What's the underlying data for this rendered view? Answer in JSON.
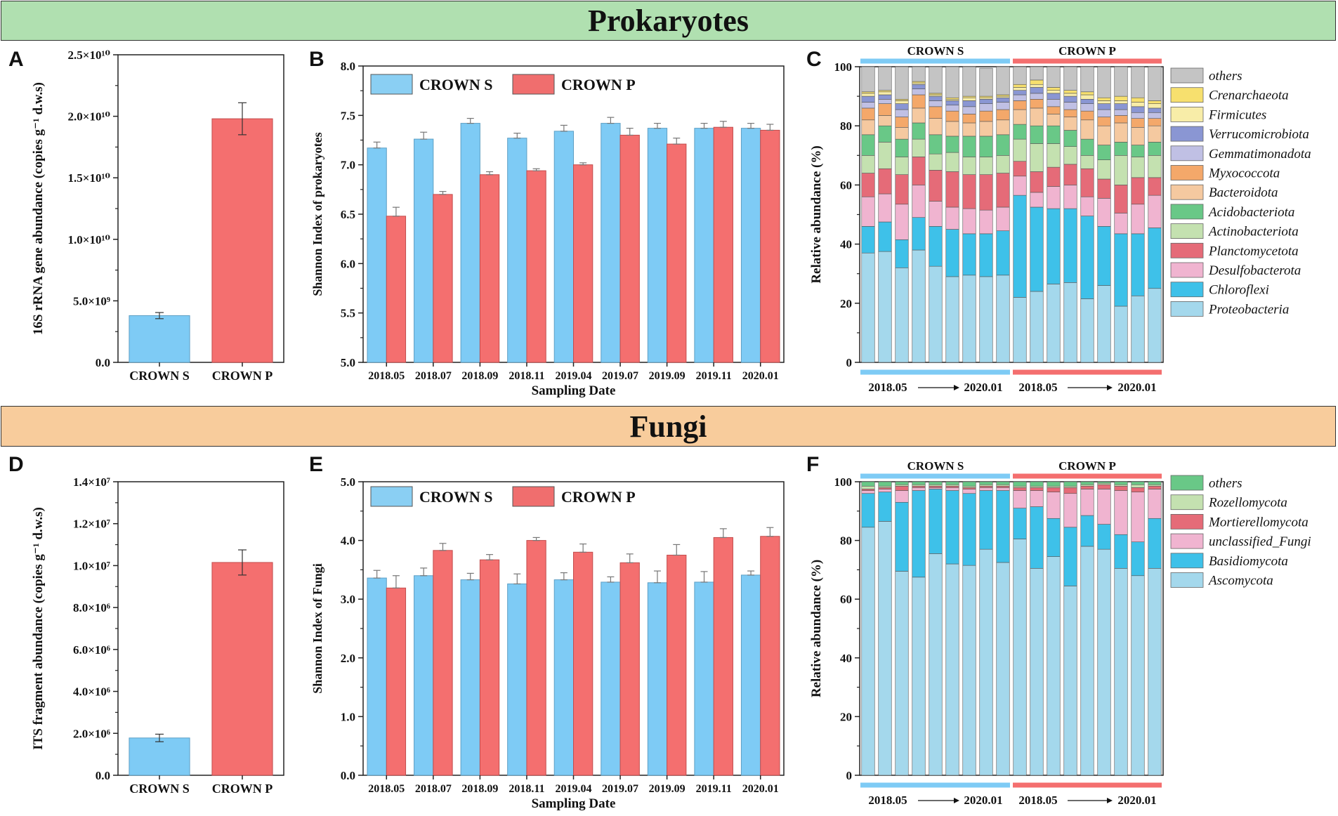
{
  "banners": {
    "prokaryotes": "Prokaryotes",
    "fungi": "Fungi"
  },
  "panel_letters": {
    "a": "A",
    "b": "B",
    "c": "C",
    "d": "D",
    "e": "E",
    "f": "F"
  },
  "colors": {
    "crown_s": "#7ecbf5",
    "crown_p": "#f46f6f",
    "bar_line_s": "#5e9fc4",
    "bar_line_p": "#c24d4d",
    "legend_bar_s": "#8acff3",
    "legend_bar_p": "#f06e6e"
  },
  "chart_data": [
    {
      "id": "A",
      "type": "bar",
      "title": "",
      "categories": [
        "CROWN S",
        "CROWN P"
      ],
      "values": [
        3800000000.0,
        19800000000.0
      ],
      "errors": [
        250000000.0,
        1300000000.0
      ],
      "ylim": [
        0,
        25000000000.0
      ],
      "yticks": [
        "0.0",
        "5.0×10⁹",
        "1.0×10¹⁰",
        "1.5×10¹⁰",
        "2.0×10¹⁰",
        "2.5×10¹⁰"
      ],
      "ylabel": "16S rRNA gene abundance (copies g⁻¹ d.w.s)",
      "xlabel": ""
    },
    {
      "id": "B",
      "type": "bar",
      "categories": [
        "2018.05",
        "2018.07",
        "2018.09",
        "2018.11",
        "2019.04",
        "2019.07",
        "2019.09",
        "2019.11",
        "2020.01"
      ],
      "series": [
        {
          "name": "CROWN S",
          "values": [
            7.17,
            7.26,
            7.42,
            7.27,
            7.34,
            7.42,
            7.37,
            7.37,
            7.37
          ],
          "errors": [
            0.06,
            0.07,
            0.05,
            0.05,
            0.06,
            0.06,
            0.05,
            0.05,
            0.05
          ]
        },
        {
          "name": "CROWN P",
          "values": [
            6.48,
            6.7,
            6.9,
            6.94,
            7.0,
            7.3,
            7.21,
            7.38,
            7.35
          ],
          "errors": [
            0.09,
            0.03,
            0.03,
            0.02,
            0.02,
            0.07,
            0.06,
            0.06,
            0.06
          ]
        }
      ],
      "ylim": [
        5.0,
        8.0
      ],
      "yticks": [
        "5.0",
        "5.5",
        "6.0",
        "6.5",
        "7.0",
        "7.5",
        "8.0"
      ],
      "ylabel": "Shannon Index  of prokaryotes",
      "xlabel": "Sampling Date"
    },
    {
      "id": "C",
      "type": "stacked_bar",
      "group_labels": [
        "CROWN S",
        "CROWN P"
      ],
      "range_labels": {
        "s_start": "2018.05",
        "s_end": "2020.01",
        "p_start": "2018.05",
        "p_end": "2020.01"
      },
      "ylim": [
        0,
        100
      ],
      "yticks": [
        "0",
        "20",
        "40",
        "60",
        "80",
        "100"
      ],
      "ylabel": "Relative abundance (%)",
      "taxa": [
        "Proteobacteria",
        "Chloroflexi",
        "Desulfobacterota",
        "Planctomycetota",
        "Actinobacteriota",
        "Acidobacteriota",
        "Bacteroidota",
        "Myxococcota",
        "Gemmatimonadota",
        "Verrucomicrobiota",
        "Firmicutes",
        "Crenarchaeota",
        "others"
      ],
      "taxa_colors": [
        "#a4d8ec",
        "#3ec1e9",
        "#f0b4d0",
        "#e56b78",
        "#c4e1b0",
        "#69c887",
        "#f5c9a0",
        "#f4a86a",
        "#c0c0e4",
        "#8a96d3",
        "#f8eda8",
        "#f7e06e",
        "#c4c4c4"
      ],
      "legend_order": [
        "others",
        "Crenarchaeota",
        "Firmicutes",
        "Verrucomicrobiota",
        "Gemmatimonadota",
        "Myxococcota",
        "Bacteroidota",
        "Acidobacteriota",
        "Actinobacteriota",
        "Planctomycetota",
        "Desulfobacterota",
        "Chloroflexi",
        "Proteobacteria"
      ],
      "samples": [
        [
          37,
          9,
          10,
          8,
          6,
          7,
          5,
          4,
          2,
          2,
          1,
          0.5,
          8.5
        ],
        [
          37.5,
          10,
          9.5,
          8.5,
          9,
          5.5,
          3.5,
          4,
          1.5,
          1.5,
          1,
          0.5,
          8
        ],
        [
          32,
          9.5,
          12,
          10,
          6,
          6,
          4,
          3.5,
          2.5,
          2,
          1,
          0.5,
          11
        ],
        [
          38,
          11,
          11,
          9.5,
          6,
          5.5,
          5,
          4.5,
          2,
          1.5,
          0.5,
          0.5,
          5
        ],
        [
          32.5,
          13.5,
          8.5,
          10.5,
          5.5,
          6.5,
          5.5,
          4,
          2,
          1.5,
          0.5,
          0.5,
          9
        ],
        [
          29,
          16,
          7.5,
          12,
          6.5,
          5.5,
          5,
          3.5,
          2,
          1.5,
          0.5,
          0.5,
          10.5
        ],
        [
          29.5,
          14,
          8.5,
          11.5,
          6,
          7,
          4.5,
          3,
          2.5,
          2,
          1,
          0.5,
          10
        ],
        [
          29,
          14.5,
          8,
          12,
          6,
          7,
          5,
          3.5,
          2.5,
          1.5,
          0.5,
          0.5,
          9.5
        ],
        [
          29.5,
          15,
          8,
          11.5,
          6,
          7,
          5,
          3.5,
          2.5,
          1.5,
          0.5,
          0.5,
          9.5
        ],
        [
          22,
          34.5,
          6.5,
          5,
          7.5,
          5,
          5,
          3,
          2,
          1.5,
          1,
          1,
          6
        ],
        [
          24,
          28.5,
          5,
          7,
          9.5,
          6,
          6,
          3,
          2,
          2,
          1,
          1.5,
          4.5
        ],
        [
          26.5,
          25.5,
          7.5,
          6.5,
          8,
          6,
          4,
          2.5,
          2.5,
          2,
          1,
          1,
          7
        ],
        [
          27,
          25,
          8,
          7,
          6,
          5.5,
          4.5,
          2.5,
          2.5,
          2,
          1,
          1,
          8
        ],
        [
          21.5,
          28,
          6.5,
          9.5,
          4.5,
          5.5,
          6.5,
          3,
          2.5,
          1.5,
          1.5,
          1,
          8.5
        ],
        [
          26,
          20,
          9.5,
          6.5,
          6.5,
          5,
          6.5,
          3,
          2.5,
          2,
          1,
          1,
          10.5
        ],
        [
          19,
          24.5,
          7,
          9.5,
          10,
          4.5,
          6.5,
          2.5,
          2,
          2,
          1,
          1.5,
          10
        ],
        [
          22.5,
          21,
          10,
          9,
          7,
          4,
          6,
          3,
          2,
          2,
          1.5,
          1.5,
          10.5
        ],
        [
          25,
          20.5,
          11,
          6,
          7.5,
          4.5,
          5.5,
          2.5,
          2,
          1.5,
          1.5,
          1,
          11.5
        ]
      ]
    },
    {
      "id": "D",
      "type": "bar",
      "categories": [
        "CROWN S",
        "CROWN P"
      ],
      "values": [
        1780000.0,
        10150000.0
      ],
      "errors": [
        180000.0,
        600000.0
      ],
      "ylim": [
        0,
        14000000.0
      ],
      "yticks": [
        "0.0",
        "2.0×10⁶",
        "4.0×10⁶",
        "6.0×10⁶",
        "8.0×10⁶",
        "1.0×10⁷",
        "1.2×10⁷",
        "1.4×10⁷"
      ],
      "ylabel": "ITS fragment  abundance (copies g⁻¹ d.w.s)",
      "xlabel": ""
    },
    {
      "id": "E",
      "type": "bar",
      "categories": [
        "2018.05",
        "2018.07",
        "2018.09",
        "2018.11",
        "2019.04",
        "2019.07",
        "2019.09",
        "2019.11",
        "2020.01"
      ],
      "series": [
        {
          "name": "CROWN S",
          "values": [
            3.36,
            3.4,
            3.33,
            3.26,
            3.33,
            3.29,
            3.28,
            3.29,
            3.41
          ],
          "errors": [
            0.13,
            0.13,
            0.11,
            0.17,
            0.12,
            0.09,
            0.2,
            0.18,
            0.07
          ]
        },
        {
          "name": "CROWN P",
          "values": [
            3.19,
            3.83,
            3.67,
            4.0,
            3.8,
            3.62,
            3.75,
            4.05,
            4.07
          ],
          "errors": [
            0.21,
            0.12,
            0.09,
            0.05,
            0.14,
            0.15,
            0.18,
            0.15,
            0.15
          ]
        }
      ],
      "ylim": [
        0,
        5.0
      ],
      "yticks": [
        "0.0",
        "1.0",
        "2.0",
        "3.0",
        "4.0",
        "5.0"
      ],
      "ylabel": "Shannon Index  of Fungi",
      "xlabel": "Sampling Date"
    },
    {
      "id": "F",
      "type": "stacked_bar",
      "group_labels": [
        "CROWN S",
        "CROWN P"
      ],
      "range_labels": {
        "s_start": "2018.05",
        "s_end": "2020.01",
        "p_start": "2018.05",
        "p_end": "2020.01"
      },
      "ylim": [
        0,
        100
      ],
      "yticks": [
        "0",
        "20",
        "40",
        "60",
        "80",
        "100"
      ],
      "ylabel": "Relative abundance (%)",
      "taxa": [
        "Ascomycota",
        "Basidiomycota",
        "unclassified_Fungi",
        "Mortierellomycota",
        "Rozellomycota",
        "others"
      ],
      "taxa_colors": [
        "#a4d8ec",
        "#3ec1e9",
        "#f0b4d0",
        "#e56b78",
        "#c4e1b0",
        "#69c887"
      ],
      "legend_order": [
        "others",
        "Rozellomycota",
        "Mortierellomycota",
        "unclassified_Fungi",
        "Basidiomycota",
        "Ascomycota"
      ],
      "samples": [
        [
          84.5,
          11.5,
          1,
          0.5,
          1,
          1.5
        ],
        [
          86.5,
          10,
          1,
          0.5,
          0.5,
          1.5
        ],
        [
          69.5,
          23.5,
          4,
          1.5,
          0.5,
          1
        ],
        [
          67.5,
          29.5,
          1,
          0.5,
          0.5,
          1
        ],
        [
          75.5,
          22,
          0.5,
          0.5,
          0.5,
          1
        ],
        [
          72,
          25,
          1,
          0.5,
          0.5,
          1
        ],
        [
          71.5,
          24.5,
          1.5,
          0.5,
          0.5,
          1.5
        ],
        [
          77,
          20,
          1,
          0.5,
          0.5,
          1
        ],
        [
          72.5,
          24.5,
          1,
          0.5,
          0.5,
          1
        ],
        [
          80.5,
          10.5,
          6,
          1,
          0.5,
          1.5
        ],
        [
          70.5,
          21,
          5.5,
          1,
          0.5,
          1.5
        ],
        [
          74.5,
          13,
          9,
          1.5,
          0.5,
          1.5
        ],
        [
          64.5,
          20,
          11.5,
          2,
          0.5,
          1.5
        ],
        [
          78,
          10.5,
          9,
          1,
          0.5,
          1
        ],
        [
          77,
          8.5,
          12,
          1.5,
          0.5,
          0.5
        ],
        [
          70.5,
          11.5,
          15,
          1.5,
          0.5,
          1
        ],
        [
          68,
          11.5,
          17,
          1.5,
          1,
          1
        ],
        [
          70.5,
          17,
          10,
          1,
          0.5,
          1
        ]
      ]
    }
  ]
}
